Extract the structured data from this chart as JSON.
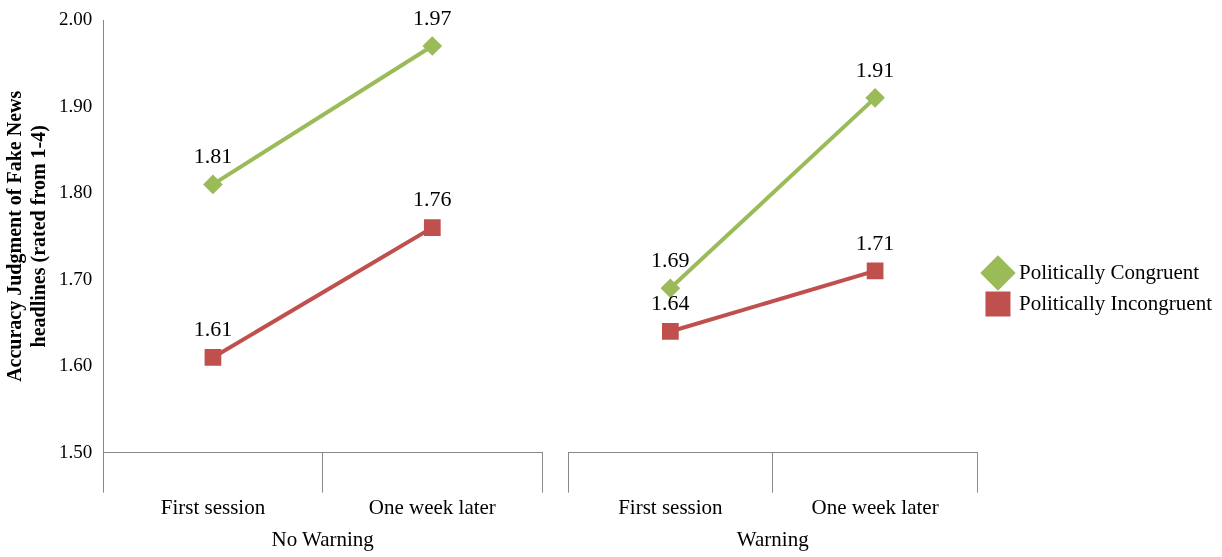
{
  "chart_data": [
    {
      "type": "line",
      "ylabel": "Accuracy Judgment of Fake News headlines (rated from 1-4)",
      "xlabel": "No Warning",
      "categories": [
        "First session",
        "One week later"
      ],
      "ylim": [
        1.5,
        2.0
      ],
      "yticks": [
        {
          "value": 1.5,
          "label": "1.50"
        },
        {
          "value": 1.6,
          "label": "1.60"
        },
        {
          "value": 1.7,
          "label": "1.70"
        },
        {
          "value": 1.8,
          "label": "1.80"
        },
        {
          "value": 1.9,
          "label": "1.90"
        },
        {
          "value": 2.0,
          "label": "2.00"
        }
      ],
      "grid": false,
      "legend": false,
      "data_labels": true,
      "series": [
        {
          "color": "#9bbb59",
          "marker": "diamond",
          "values": [
            1.81,
            1.97
          ]
        },
        {
          "color": "#c0504d",
          "marker": "square",
          "values": [
            1.61,
            1.76
          ]
        }
      ]
    },
    {
      "type": "line",
      "xlabel": "Warning",
      "categories": [
        "First session",
        "One week later"
      ],
      "ylim": [
        1.5,
        2.0
      ],
      "tick_labels": "x",
      "grid": false,
      "legend": "right",
      "data_labels": true,
      "series": [
        {
          "name": "Politically Congruent",
          "color": "#9bbb59",
          "marker": "diamond",
          "values": [
            1.69,
            1.91
          ]
        },
        {
          "name": "Politically Incongruent",
          "color": "#c0504d",
          "marker": "square",
          "values": [
            1.64,
            1.71
          ]
        }
      ]
    }
  ]
}
